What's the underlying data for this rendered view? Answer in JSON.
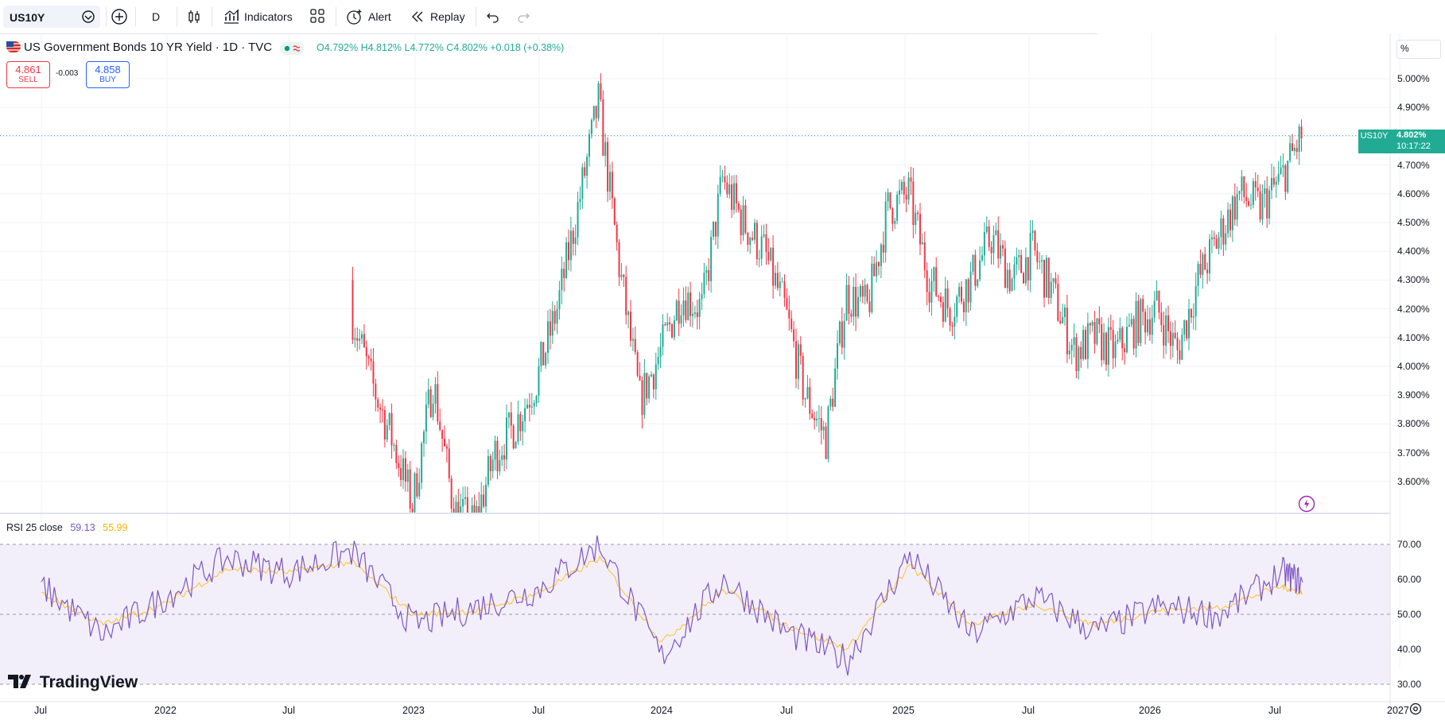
{
  "toolbar": {
    "symbol": "US10Y",
    "interval": "D",
    "indicators_label": "Indicators",
    "alert_label": "Alert",
    "replay_label": "Replay"
  },
  "legend": {
    "title": "US Government Bonds 10 YR Yield · 1D · TVC",
    "ohlc": "O4.792%  H4.812%  L4.772%  C4.802%  +0.018 (+0.38%)"
  },
  "trade": {
    "sell_value": "4.861",
    "sell_label": "SELL",
    "spread": "-0.003",
    "buy_value": "4.858",
    "buy_label": "BUY"
  },
  "price_scale": {
    "unit": "%",
    "ticks": [
      "5.000%",
      "4.900%",
      "4.800%",
      "4.700%",
      "4.600%",
      "4.500%",
      "4.400%",
      "4.300%",
      "4.200%",
      "4.100%",
      "4.000%",
      "3.900%",
      "3.800%",
      "3.700%",
      "3.600%"
    ],
    "last_symbol": "US10Y",
    "last_price": "4.802%",
    "countdown": "10:17:22"
  },
  "rsi": {
    "label": "RSI 25 close",
    "value": "59.13",
    "ma_value": "55.99",
    "ticks": [
      "70.00",
      "60.00",
      "50.00",
      "40.00",
      "30.00"
    ]
  },
  "time_axis": {
    "ticks": [
      "Jul",
      "2022",
      "Jul",
      "2023",
      "Jul",
      "2024",
      "Jul",
      "2025",
      "Jul",
      "2026",
      "Jul",
      "2027"
    ]
  },
  "brand": "TradingView",
  "colors": {
    "up": "#22ab94",
    "down": "#f23645",
    "rsi_line": "#7e57c2",
    "rsi_ma": "#fbc02d",
    "rsi_band": "#f3effa",
    "sell": "#f23645",
    "buy": "#2962ff"
  },
  "chart_data": [
    {
      "type": "candlestick",
      "title": "US Government Bonds 10 YR Yield · 1D · TVC",
      "y_unit": "%",
      "ylim": [
        3.5,
        5.1
      ],
      "x": [
        "2022-10",
        "2022-11",
        "2022-12",
        "2023-01",
        "2023-02",
        "2023-03",
        "2023-04",
        "2023-05",
        "2023-06",
        "2023-07",
        "2023-08",
        "2023-09",
        "2023-10",
        "2023-11",
        "2023-12",
        "2024-01",
        "2024-02",
        "2024-03",
        "2024-04",
        "2024-05",
        "2024-06",
        "2024-07",
        "2024-08",
        "2024-09",
        "2024-10",
        "2024-11",
        "2024-12",
        "2025-01",
        "2025-02",
        "2025-03",
        "2025-04",
        "2025-05",
        "2025-06",
        "2025-07",
        "2025-08",
        "2025-09",
        "2025-10",
        "2025-11",
        "2025-12",
        "2026-01",
        "2026-02",
        "2026-03",
        "2026-04",
        "2026-05",
        "2026-06",
        "2026-07",
        "2026-08"
      ],
      "close": [
        4.2,
        3.95,
        3.75,
        3.52,
        3.95,
        3.5,
        3.45,
        3.7,
        3.8,
        3.95,
        4.2,
        4.55,
        4.92,
        4.35,
        3.88,
        4.05,
        4.25,
        4.2,
        4.65,
        4.5,
        4.4,
        4.2,
        3.9,
        3.75,
        4.25,
        4.2,
        4.55,
        4.6,
        4.3,
        4.2,
        4.3,
        4.45,
        4.3,
        4.4,
        4.25,
        4.05,
        4.1,
        4.05,
        4.15,
        4.2,
        4.05,
        4.3,
        4.45,
        4.6,
        4.55,
        4.65,
        4.8
      ],
      "last": {
        "open": 4.792,
        "high": 4.812,
        "low": 4.772,
        "close": 4.802,
        "change": 0.018,
        "change_pct": 0.38
      }
    },
    {
      "type": "line",
      "title": "RSI 25 close",
      "ylim": [
        30,
        70
      ],
      "x": [
        "2021-07",
        "2021-10",
        "2022-01",
        "2022-04",
        "2022-07",
        "2022-10",
        "2023-01",
        "2023-04",
        "2023-07",
        "2023-10",
        "2024-01",
        "2024-04",
        "2024-07",
        "2024-10",
        "2025-01",
        "2025-04",
        "2025-07",
        "2025-10",
        "2026-01",
        "2026-04",
        "2026-07",
        "2026-08"
      ],
      "series": [
        {
          "name": "RSI",
          "values": [
            58,
            44,
            55,
            66,
            62,
            68,
            47,
            52,
            57,
            70,
            38,
            60,
            45,
            37,
            67,
            44,
            55,
            45,
            52,
            50,
            62,
            59.13
          ]
        },
        {
          "name": "MA",
          "values": [
            56,
            47,
            53,
            63,
            62,
            65,
            50,
            51,
            56,
            66,
            42,
            57,
            47,
            40,
            64,
            47,
            53,
            47,
            51,
            52,
            58,
            55.99
          ]
        }
      ]
    }
  ]
}
